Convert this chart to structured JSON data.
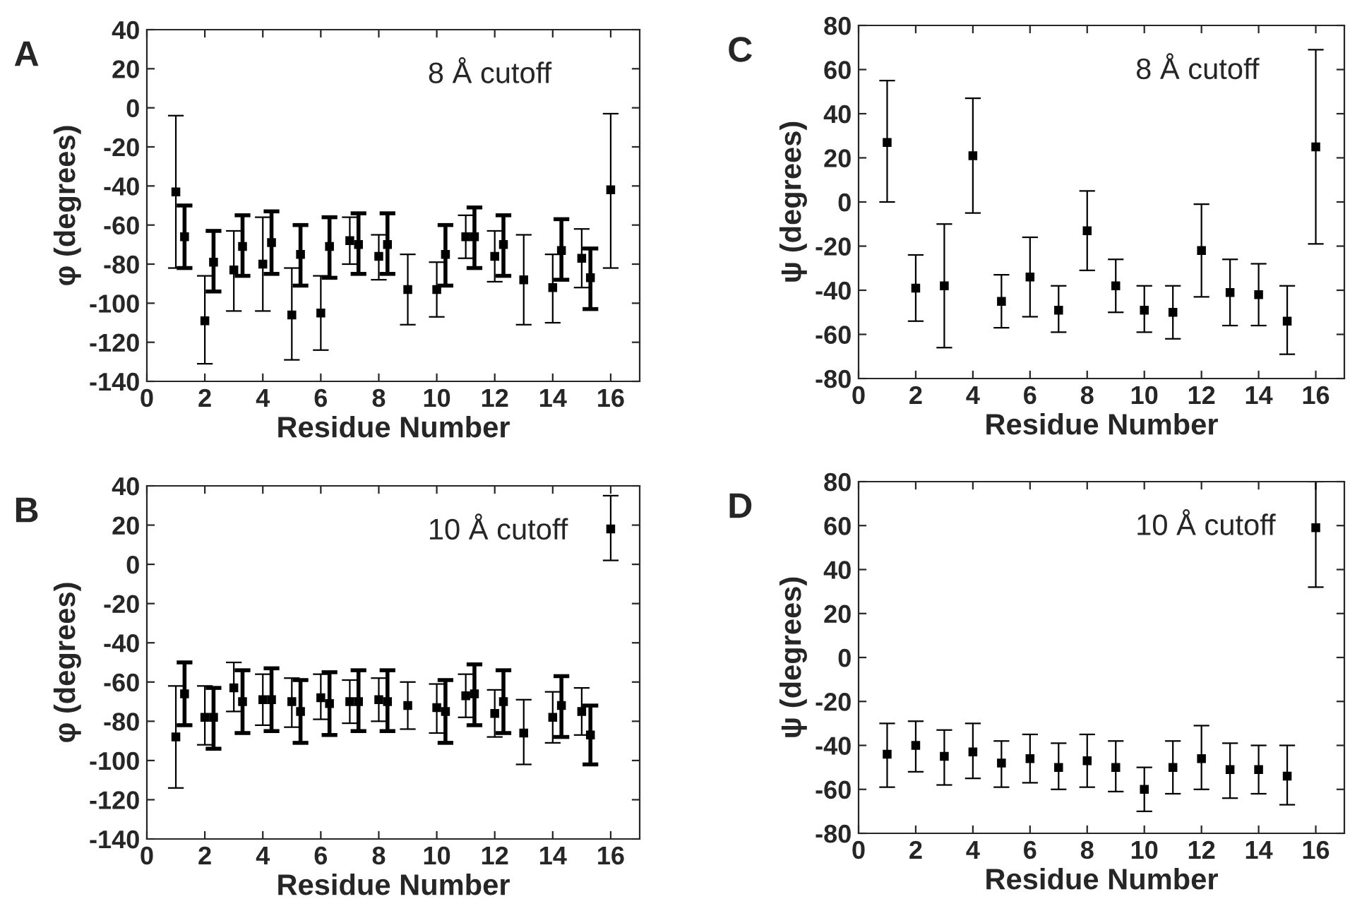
{
  "chart_data": [
    {
      "type": "scatter",
      "title": "A",
      "xlabel": "Residue Number",
      "ylabel": "φ (degrees)",
      "annotations": [
        "8 Å cutoff"
      ],
      "xlim": [
        0,
        17
      ],
      "xticks": [
        0,
        2,
        4,
        6,
        8,
        10,
        12,
        14,
        16
      ],
      "ylim": [
        -140,
        40
      ],
      "yticks": [
        -140,
        -120,
        -100,
        -80,
        -60,
        -40,
        -20,
        0,
        20,
        40
      ],
      "marker": "square",
      "grid": false,
      "legend": false,
      "series": [
        {
          "color": "#000000",
          "x": [
            1,
            2,
            3,
            4,
            5,
            6,
            7,
            8,
            9,
            10,
            11,
            12,
            13,
            14,
            15,
            16
          ],
          "values": [
            -43,
            -109,
            -83,
            -80,
            -106,
            -105,
            -68,
            -76,
            -93,
            -93,
            -66,
            -76,
            -88,
            -92,
            -77,
            -42
          ],
          "errors": [
            [
              -82,
              -4
            ],
            [
              -131,
              -86
            ],
            [
              -104,
              -63
            ],
            [
              -104,
              -56
            ],
            [
              -129,
              -82
            ],
            [
              -124,
              -86
            ],
            [
              -80,
              -56
            ],
            [
              -88,
              -65
            ],
            [
              -111,
              -75
            ],
            [
              -107,
              -79
            ],
            [
              -77,
              -55
            ],
            [
              -89,
              -63
            ],
            [
              -111,
              -65
            ],
            [
              -110,
              -75
            ],
            [
              -92,
              -62
            ],
            [
              -82,
              -3
            ]
          ]
        },
        {
          "color": "#000000",
          "x": [
            1.3,
            2.3,
            3.3,
            4.3,
            5.3,
            6.3,
            7.3,
            8.3,
            10.3,
            11.3,
            12.3,
            14.3,
            15.3
          ],
          "values": [
            -66,
            -79,
            -71,
            -69,
            -75,
            -71,
            -70,
            -70,
            -75,
            -66,
            -70,
            -73,
            -87
          ],
          "errors": [
            [
              -82,
              -50
            ],
            [
              -94,
              -63
            ],
            [
              -86,
              -55
            ],
            [
              -85,
              -53
            ],
            [
              -91,
              -60
            ],
            [
              -87,
              -56
            ],
            [
              -85,
              -54
            ],
            [
              -85,
              -54
            ],
            [
              -91,
              -60
            ],
            [
              -82,
              -51
            ],
            [
              -86,
              -55
            ],
            [
              -88,
              -57
            ],
            [
              -103,
              -72
            ]
          ]
        }
      ]
    },
    {
      "type": "scatter",
      "title": "C",
      "xlabel": "Residue Number",
      "ylabel": "ψ (degrees)",
      "annotations": [
        "8 Å cutoff"
      ],
      "xlim": [
        0,
        17
      ],
      "xticks": [
        0,
        2,
        4,
        6,
        8,
        10,
        12,
        14,
        16
      ],
      "ylim": [
        -80,
        80
      ],
      "yticks": [
        -80,
        -60,
        -40,
        -20,
        0,
        20,
        40,
        60,
        80
      ],
      "marker": "square",
      "grid": false,
      "legend": false,
      "series": [
        {
          "color": "#000000",
          "x": [
            1,
            2,
            3,
            4,
            5,
            6,
            7,
            8,
            9,
            10,
            11,
            12,
            13,
            14,
            15,
            16
          ],
          "values": [
            27,
            -39,
            -38,
            21,
            -45,
            -34,
            -49,
            -13,
            -38,
            -49,
            -50,
            -22,
            -41,
            -42,
            -54,
            25
          ],
          "errors": [
            [
              0,
              55
            ],
            [
              -54,
              -24
            ],
            [
              -66,
              -10
            ],
            [
              -5,
              47
            ],
            [
              -57,
              -33
            ],
            [
              -52,
              -16
            ],
            [
              -59,
              -38
            ],
            [
              -31,
              5
            ],
            [
              -50,
              -26
            ],
            [
              -59,
              -38
            ],
            [
              -62,
              -38
            ],
            [
              -43,
              -1
            ],
            [
              -56,
              -26
            ],
            [
              -56,
              -28
            ],
            [
              -69,
              -38
            ],
            [
              -19,
              69
            ]
          ]
        }
      ]
    },
    {
      "type": "scatter",
      "title": "B",
      "xlabel": "Residue Number",
      "ylabel": "φ (degrees)",
      "annotations": [
        "10 Å cutoff"
      ],
      "xlim": [
        0,
        17
      ],
      "xticks": [
        0,
        2,
        4,
        6,
        8,
        10,
        12,
        14,
        16
      ],
      "ylim": [
        -140,
        40
      ],
      "yticks": [
        -140,
        -120,
        -100,
        -80,
        -60,
        -40,
        -20,
        0,
        20,
        40
      ],
      "marker": "square",
      "grid": false,
      "legend": false,
      "series": [
        {
          "color": "#000000",
          "x": [
            1,
            2,
            3,
            4,
            5,
            6,
            7,
            8,
            9,
            10,
            11,
            12,
            13,
            14,
            15,
            16
          ],
          "values": [
            -88,
            -78,
            -63,
            -69,
            -70,
            -68,
            -70,
            -69,
            -72,
            -73,
            -67,
            -76,
            -86,
            -78,
            -75,
            18
          ],
          "errors": [
            [
              -114,
              -62
            ],
            [
              -92,
              -62
            ],
            [
              -75,
              -50
            ],
            [
              -82,
              -56
            ],
            [
              -83,
              -58
            ],
            [
              -79,
              -56
            ],
            [
              -81,
              -59
            ],
            [
              -80,
              -58
            ],
            [
              -84,
              -60
            ],
            [
              -86,
              -61
            ],
            [
              -78,
              -56
            ],
            [
              -88,
              -64
            ],
            [
              -102,
              -69
            ],
            [
              -91,
              -65
            ],
            [
              -87,
              -63
            ],
            [
              2,
              35
            ]
          ]
        },
        {
          "color": "#000000",
          "x": [
            1.3,
            2.3,
            3.3,
            4.3,
            5.3,
            6.3,
            7.3,
            8.3,
            10.3,
            11.3,
            12.3,
            14.3,
            15.3
          ],
          "values": [
            -66,
            -78,
            -70,
            -69,
            -75,
            -71,
            -70,
            -70,
            -75,
            -66,
            -70,
            -72,
            -87
          ],
          "errors": [
            [
              -82,
              -50
            ],
            [
              -94,
              -63
            ],
            [
              -86,
              -54
            ],
            [
              -85,
              -53
            ],
            [
              -91,
              -59
            ],
            [
              -87,
              -55
            ],
            [
              -85,
              -54
            ],
            [
              -85,
              -54
            ],
            [
              -91,
              -59
            ],
            [
              -82,
              -51
            ],
            [
              -86,
              -54
            ],
            [
              -88,
              -57
            ],
            [
              -102,
              -72
            ]
          ]
        }
      ]
    },
    {
      "type": "scatter",
      "title": "D",
      "xlabel": "Residue Number",
      "ylabel": "ψ (degrees)",
      "annotations": [
        "10 Å cutoff"
      ],
      "xlim": [
        0,
        17
      ],
      "xticks": [
        0,
        2,
        4,
        6,
        8,
        10,
        12,
        14,
        16
      ],
      "ylim": [
        -80,
        80
      ],
      "yticks": [
        -80,
        -60,
        -40,
        -20,
        0,
        20,
        40,
        60,
        80
      ],
      "marker": "square",
      "grid": false,
      "legend": false,
      "series": [
        {
          "color": "#000000",
          "x": [
            1,
            2,
            3,
            4,
            5,
            6,
            7,
            8,
            9,
            10,
            11,
            12,
            13,
            14,
            15,
            16
          ],
          "values": [
            -44,
            -40,
            -45,
            -43,
            -48,
            -46,
            -50,
            -47,
            -50,
            -60,
            -50,
            -46,
            -51,
            -51,
            -54,
            59
          ],
          "errors": [
            [
              -59,
              -30
            ],
            [
              -52,
              -29
            ],
            [
              -58,
              -33
            ],
            [
              -55,
              -30
            ],
            [
              -59,
              -38
            ],
            [
              -57,
              -35
            ],
            [
              -60,
              -39
            ],
            [
              -59,
              -35
            ],
            [
              -61,
              -38
            ],
            [
              -70,
              -50
            ],
            [
              -62,
              -38
            ],
            [
              -60,
              -31
            ],
            [
              -64,
              -39
            ],
            [
              -62,
              -40
            ],
            [
              -67,
              -40
            ],
            [
              32,
              80
            ]
          ]
        }
      ]
    }
  ]
}
